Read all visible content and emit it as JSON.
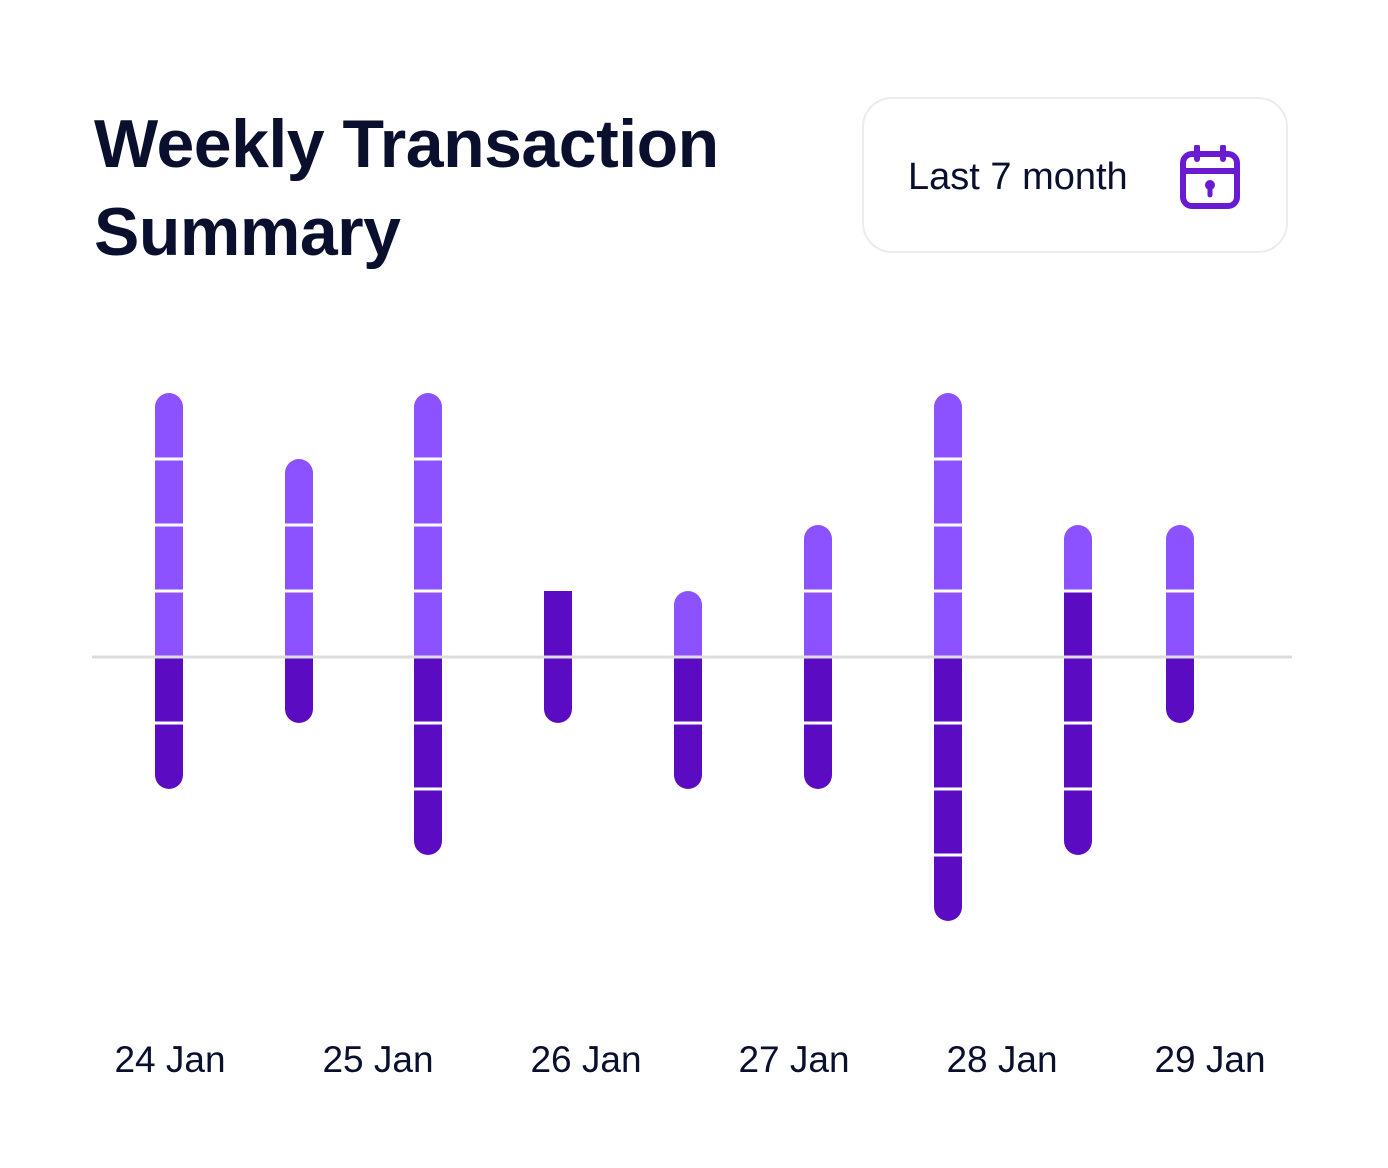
{
  "header": {
    "title": "Weekly Transaction Summary",
    "range_label": "Last 7 month",
    "range_icon": "calendar-icon"
  },
  "colors": {
    "positive": "#8c52ff",
    "negative": "#5b0cc2",
    "baseline": "#dcdcdf",
    "segment_gap": "#ffffff",
    "accent": "#6a1bd1"
  },
  "chart_data": {
    "type": "bar",
    "x_labels": [
      "24 Jan",
      "25 Jan",
      "26 Jan",
      "27 Jan",
      "28 Jan",
      "29 Jan"
    ],
    "bars": [
      {
        "segments_up": [
          1,
          1,
          1,
          1
        ],
        "segments_down": [
          1,
          1
        ]
      },
      {
        "segments_up": [
          1,
          1,
          1
        ],
        "segments_down": [
          1
        ]
      },
      {
        "segments_up": [
          1,
          1,
          1,
          1
        ],
        "segments_down": [
          1,
          1,
          1
        ]
      },
      {
        "segments_up": [
          1
        ],
        "segments_down": [
          1
        ],
        "flat_top": true,
        "up_color": "negative"
      },
      {
        "segments_up": [
          1
        ],
        "segments_down": [
          1,
          1
        ]
      },
      {
        "segments_up": [
          1,
          1
        ],
        "segments_down": [
          1,
          1
        ]
      },
      {
        "segments_up": [
          1,
          1,
          1,
          1
        ],
        "segments_down": [
          1,
          1,
          1,
          1
        ]
      },
      {
        "segments_up": [
          1
        ],
        "segments_down": [
          1,
          1,
          1
        ],
        "up_extra_negative": 1
      },
      {
        "segments_up": [
          1,
          1
        ],
        "segments_down": [
          1
        ]
      }
    ],
    "baseline": 0,
    "grid": false,
    "legend": "none"
  }
}
